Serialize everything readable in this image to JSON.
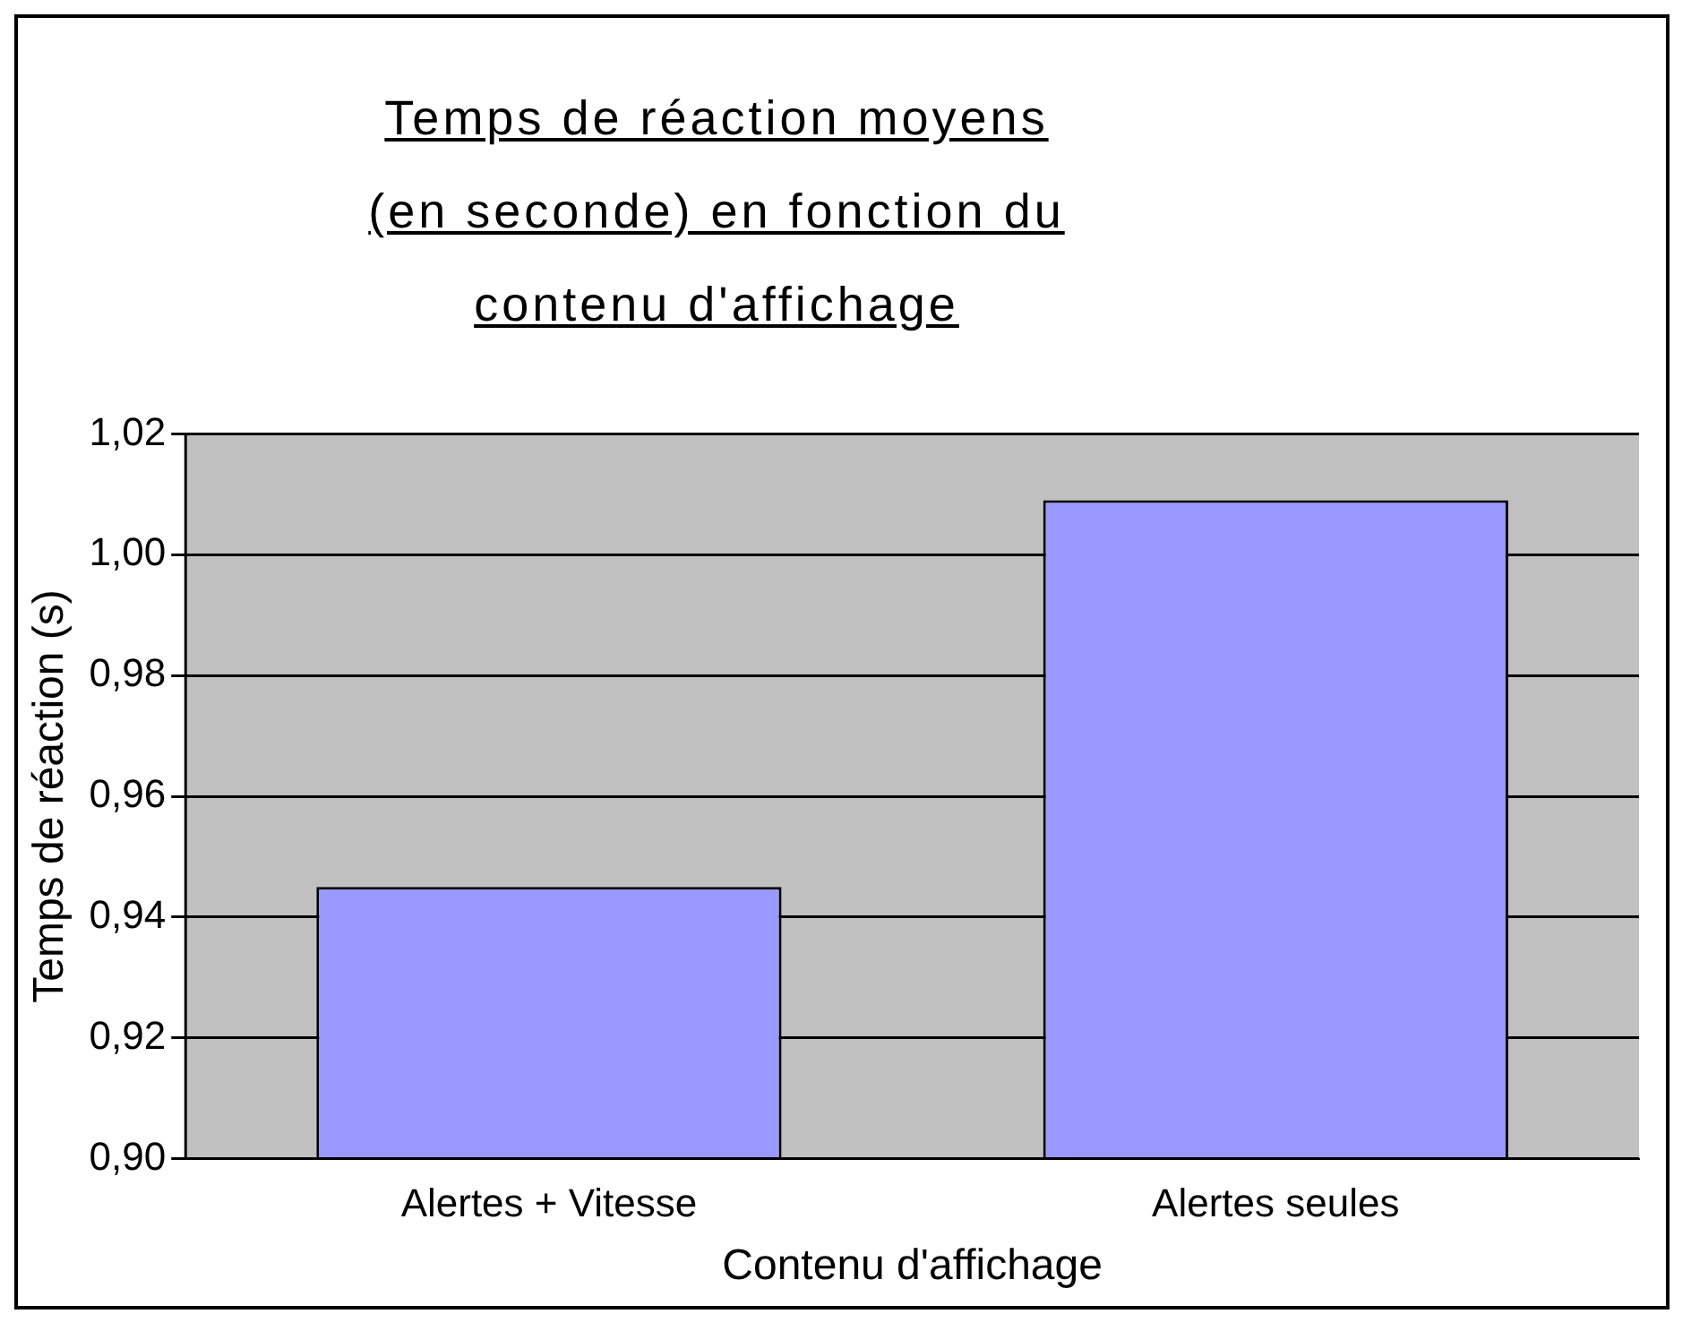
{
  "chart_data": {
    "type": "bar",
    "title": "Temps de réaction moyens (en seconde) en fonction du contenu d'affichage",
    "xlabel": "Contenu d'affichage",
    "ylabel": "Temps de réaction (s)",
    "categories": [
      "Alertes + Vitesse",
      "Alertes seules"
    ],
    "values": [
      0.945,
      1.009
    ],
    "color": "#9999ff",
    "ylim": [
      0.9,
      1.02
    ],
    "yticks": [
      {
        "value": 0.9,
        "label": "0,90"
      },
      {
        "value": 0.92,
        "label": "0,92"
      },
      {
        "value": 0.94,
        "label": "0,94"
      },
      {
        "value": 0.96,
        "label": "0,96"
      },
      {
        "value": 0.98,
        "label": "0,98"
      },
      {
        "value": 1.0,
        "label": "1,00"
      },
      {
        "value": 1.02,
        "label": "1,02"
      }
    ],
    "grid": "y",
    "legend": false
  }
}
